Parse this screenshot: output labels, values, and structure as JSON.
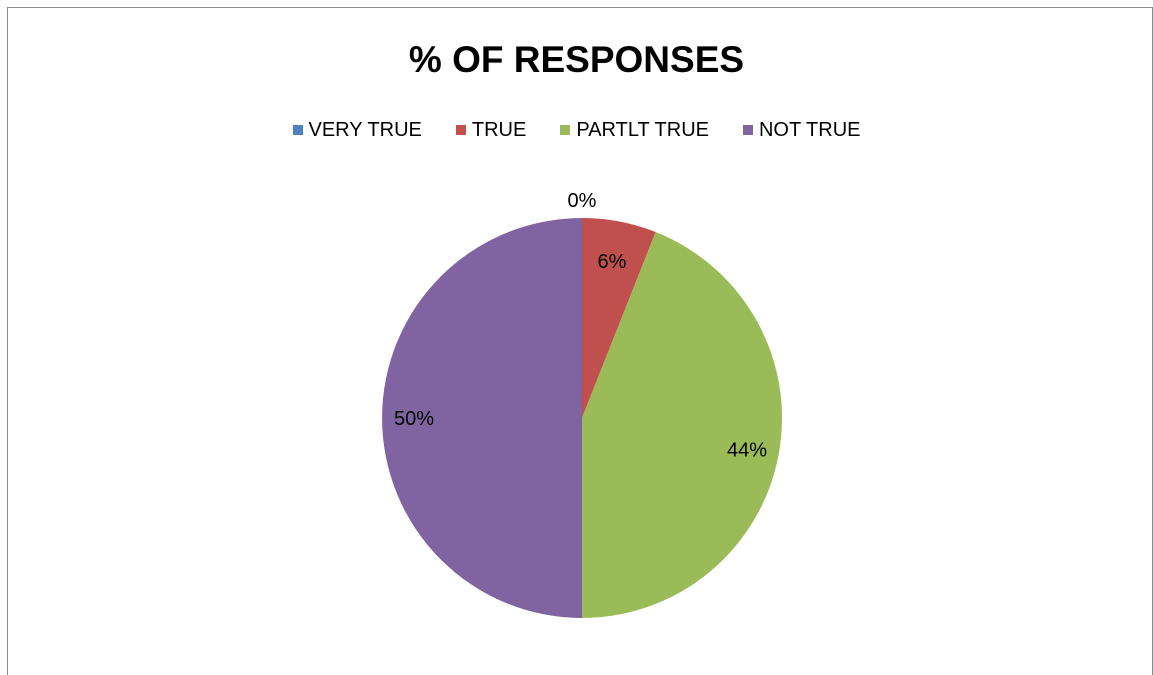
{
  "chart_data": {
    "type": "pie",
    "title": "% OF RESPONSES",
    "categories": [
      "VERY TRUE",
      "TRUE",
      "PARTLT TRUE",
      "NOT TRUE"
    ],
    "values": [
      0,
      6,
      44,
      50
    ],
    "data_labels": [
      "0%",
      "6%",
      "44%",
      "50%"
    ],
    "colors": [
      "#4f81bd",
      "#c0504d",
      "#9bbb59",
      "#8064a2"
    ],
    "legend_position": "top"
  }
}
